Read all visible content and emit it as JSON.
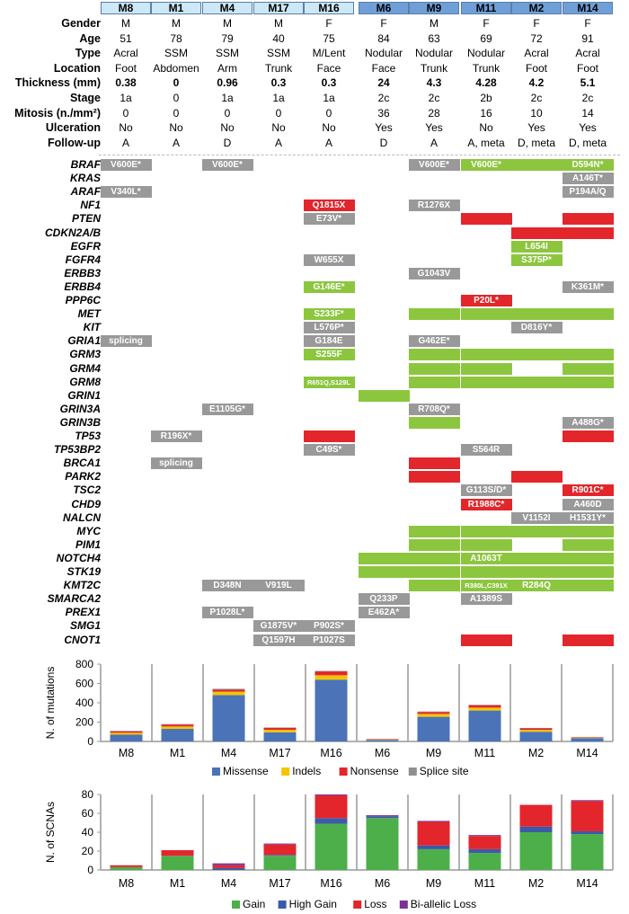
{
  "samples": [
    "M8",
    "M1",
    "M4",
    "M17",
    "M16",
    "M6",
    "M9",
    "M11",
    "M2",
    "M14"
  ],
  "header_styles": [
    "light",
    "light",
    "light",
    "light",
    "light",
    "dark",
    "dark",
    "dark",
    "dark",
    "dark"
  ],
  "clinical": [
    {
      "label": "Gender",
      "bold": false,
      "values": [
        "M",
        "M",
        "M",
        "M",
        "F",
        "F",
        "M",
        "F",
        "F",
        "F"
      ]
    },
    {
      "label": "Age",
      "bold": false,
      "values": [
        "51",
        "78",
        "79",
        "40",
        "75",
        "84",
        "63",
        "69",
        "72",
        "91"
      ]
    },
    {
      "label": "Type",
      "bold": false,
      "values": [
        "Acral",
        "SSM",
        "SSM",
        "SSM",
        "M/Lent",
        "Nodular",
        "Nodular",
        "Nodular",
        "Acral",
        "Acral"
      ]
    },
    {
      "label": "Location",
      "bold": false,
      "values": [
        "Foot",
        "Abdomen",
        "Arm",
        "Trunk",
        "Face",
        "Face",
        "Trunk",
        "Trunk",
        "Foot",
        "Foot"
      ]
    },
    {
      "label": "Thickness (mm)",
      "bold": true,
      "values": [
        "0.38",
        "0",
        "0.96",
        "0.3",
        "0.3",
        "24",
        "4.3",
        "4.28",
        "4.2",
        "5.1"
      ]
    },
    {
      "label": "Stage",
      "bold": false,
      "values": [
        "1a",
        "0",
        "1a",
        "1a",
        "1a",
        "2c",
        "2c",
        "2b",
        "2c",
        "2c"
      ]
    },
    {
      "label": "Mitosis (n./mm²)",
      "bold": false,
      "values": [
        "0",
        "0",
        "0",
        "0",
        "0",
        "36",
        "28",
        "16",
        "10",
        "14"
      ]
    },
    {
      "label": "Ulceration",
      "bold": false,
      "values": [
        "No",
        "No",
        "No",
        "No",
        "No",
        "Yes",
        "Yes",
        "No",
        "Yes",
        "Yes"
      ]
    },
    {
      "label": "Follow-up",
      "bold": false,
      "values": [
        "A",
        "A",
        "D",
        "A",
        "A",
        "D",
        "A",
        "A, meta",
        "D, meta",
        "D, meta"
      ]
    }
  ],
  "genes": [
    {
      "name": "BRAF",
      "cells": [
        [
          "g",
          "V600E*"
        ],
        null,
        [
          "g",
          "V600E*"
        ],
        null,
        null,
        null,
        [
          "g",
          "V600E*"
        ],
        [
          "G",
          "V600E*"
        ],
        [
          "G",
          ""
        ],
        [
          "G",
          "D594N*"
        ]
      ]
    },
    {
      "name": "KRAS",
      "cells": [
        null,
        null,
        null,
        null,
        null,
        null,
        null,
        null,
        null,
        [
          "g",
          "A146T*"
        ]
      ]
    },
    {
      "name": "ARAF",
      "cells": [
        [
          "g",
          "V340L*"
        ],
        null,
        null,
        null,
        null,
        null,
        null,
        null,
        null,
        [
          "g",
          "P194A/Q"
        ]
      ]
    },
    {
      "name": "NF1",
      "cells": [
        null,
        null,
        null,
        null,
        [
          "r",
          "Q1815X"
        ],
        null,
        [
          "g",
          "R1276X"
        ],
        null,
        null,
        null
      ]
    },
    {
      "name": "PTEN",
      "cells": [
        null,
        null,
        null,
        null,
        [
          "g",
          "E73V*"
        ],
        null,
        null,
        [
          "r",
          ""
        ],
        null,
        [
          "r",
          ""
        ]
      ]
    },
    {
      "name": "CDKN2A/B",
      "cells": [
        null,
        null,
        null,
        null,
        null,
        null,
        null,
        null,
        [
          "r",
          ""
        ],
        [
          "r",
          ""
        ]
      ]
    },
    {
      "name": "EGFR",
      "cells": [
        null,
        null,
        null,
        null,
        null,
        null,
        null,
        null,
        [
          "G",
          "L654I"
        ],
        null
      ]
    },
    {
      "name": "FGFR4",
      "cells": [
        null,
        null,
        null,
        null,
        [
          "g",
          "W655X"
        ],
        null,
        null,
        null,
        [
          "G",
          "S375P*"
        ],
        null
      ]
    },
    {
      "name": "ERBB3",
      "cells": [
        null,
        null,
        null,
        null,
        null,
        null,
        [
          "g",
          "G1043V"
        ],
        null,
        null,
        null
      ]
    },
    {
      "name": "ERBB4",
      "cells": [
        null,
        null,
        null,
        null,
        [
          "G",
          "G146E*"
        ],
        null,
        null,
        null,
        null,
        [
          "g",
          "K361M*"
        ]
      ]
    },
    {
      "name": "PPP6C",
      "cells": [
        null,
        null,
        null,
        null,
        null,
        null,
        null,
        [
          "r",
          "P20L*"
        ],
        null,
        null
      ]
    },
    {
      "name": "MET",
      "cells": [
        null,
        null,
        null,
        null,
        [
          "G",
          "S233F*"
        ],
        null,
        [
          "G",
          ""
        ],
        [
          "G",
          ""
        ],
        [
          "G",
          ""
        ],
        [
          "G",
          ""
        ]
      ]
    },
    {
      "name": "KIT",
      "cells": [
        null,
        null,
        null,
        null,
        [
          "g",
          "L576P*"
        ],
        null,
        null,
        null,
        [
          "g",
          "D816Y*"
        ],
        null
      ]
    },
    {
      "name": "GRIA1",
      "cells": [
        [
          "g",
          "splicing"
        ],
        null,
        null,
        null,
        [
          "g",
          "G184E"
        ],
        null,
        [
          "g",
          "G462E*"
        ],
        null,
        null,
        null
      ]
    },
    {
      "name": "GRM3",
      "cells": [
        null,
        null,
        null,
        null,
        [
          "G",
          "S255F"
        ],
        null,
        [
          "G",
          ""
        ],
        [
          "G",
          ""
        ],
        [
          "G",
          ""
        ],
        [
          "G",
          ""
        ]
      ]
    },
    {
      "name": "GRM4",
      "cells": [
        null,
        null,
        null,
        null,
        null,
        null,
        [
          "G",
          ""
        ],
        [
          "G",
          ""
        ],
        null,
        [
          "G",
          ""
        ]
      ]
    },
    {
      "name": "GRM8",
      "cells": [
        null,
        null,
        null,
        null,
        [
          "Gs",
          "R651Q,S129L"
        ],
        null,
        [
          "G",
          ""
        ],
        [
          "G",
          ""
        ],
        [
          "G",
          ""
        ],
        [
          "G",
          ""
        ]
      ]
    },
    {
      "name": "GRIN1",
      "cells": [
        null,
        null,
        null,
        null,
        null,
        [
          "G",
          ""
        ],
        null,
        null,
        null,
        null
      ]
    },
    {
      "name": "GRIN3A",
      "cells": [
        null,
        null,
        [
          "g",
          "E1105G*"
        ],
        null,
        null,
        null,
        [
          "g",
          "R708Q*"
        ],
        null,
        null,
        null
      ]
    },
    {
      "name": "GRIN3B",
      "cells": [
        null,
        null,
        null,
        null,
        null,
        null,
        [
          "G",
          ""
        ],
        null,
        null,
        [
          "g",
          "A488G*"
        ]
      ]
    },
    {
      "name": "TP53",
      "cells": [
        null,
        [
          "g",
          "R196X*"
        ],
        null,
        null,
        [
          "r",
          ""
        ],
        null,
        null,
        null,
        null,
        [
          "r",
          ""
        ]
      ]
    },
    {
      "name": "TP53BP2",
      "cells": [
        null,
        null,
        null,
        null,
        [
          "g",
          "C49S*"
        ],
        null,
        null,
        [
          "g",
          "S564R"
        ],
        null,
        null
      ]
    },
    {
      "name": "BRCA1",
      "cells": [
        null,
        [
          "g",
          "splicing"
        ],
        null,
        null,
        null,
        null,
        [
          "r",
          ""
        ],
        null,
        null,
        null
      ]
    },
    {
      "name": "PARK2",
      "cells": [
        null,
        null,
        null,
        null,
        null,
        null,
        [
          "r",
          ""
        ],
        null,
        [
          "r",
          ""
        ],
        null
      ]
    },
    {
      "name": "TSC2",
      "cells": [
        null,
        null,
        null,
        null,
        null,
        null,
        null,
        [
          "g",
          "G113S/D*"
        ],
        null,
        [
          "r",
          "R901C*"
        ]
      ]
    },
    {
      "name": "CHD9",
      "cells": [
        null,
        null,
        null,
        null,
        null,
        null,
        null,
        [
          "r",
          "R1988C*"
        ],
        null,
        [
          "g",
          "A460D"
        ]
      ]
    },
    {
      "name": "NALCN",
      "cells": [
        null,
        null,
        null,
        null,
        null,
        null,
        null,
        null,
        [
          "g",
          "V1152I"
        ],
        [
          "g",
          "H1531Y*"
        ]
      ]
    },
    {
      "name": "MYC",
      "cells": [
        null,
        null,
        null,
        null,
        null,
        null,
        [
          "G",
          ""
        ],
        [
          "G",
          ""
        ],
        [
          "G",
          ""
        ],
        [
          "G",
          ""
        ]
      ]
    },
    {
      "name": "PIM1",
      "cells": [
        null,
        null,
        null,
        null,
        null,
        null,
        [
          "G",
          ""
        ],
        [
          "G",
          ""
        ],
        null,
        [
          "G",
          ""
        ]
      ]
    },
    {
      "name": "NOTCH4",
      "cells": [
        null,
        null,
        null,
        null,
        null,
        [
          "G",
          ""
        ],
        [
          "G",
          ""
        ],
        [
          "G",
          "A1063T"
        ],
        [
          "G",
          ""
        ],
        [
          "G",
          ""
        ]
      ]
    },
    {
      "name": "STK19",
      "cells": [
        null,
        null,
        null,
        null,
        null,
        [
          "G",
          ""
        ],
        [
          "G",
          ""
        ],
        [
          "G",
          ""
        ],
        [
          "G",
          ""
        ],
        [
          "G",
          ""
        ]
      ]
    },
    {
      "name": "KMT2C",
      "cells": [
        null,
        null,
        [
          "g",
          "D348N"
        ],
        [
          "g",
          "V919L"
        ],
        null,
        null,
        [
          "G",
          ""
        ],
        [
          "Gs",
          "R380L,C391X"
        ],
        [
          "G",
          "R284Q"
        ],
        [
          "G",
          ""
        ]
      ]
    },
    {
      "name": "SMARCA2",
      "cells": [
        null,
        null,
        null,
        null,
        null,
        [
          "g",
          "Q233P"
        ],
        null,
        [
          "g",
          "A1389S"
        ],
        null,
        null
      ]
    },
    {
      "name": "PREX1",
      "cells": [
        null,
        null,
        [
          "g",
          "P1028L*"
        ],
        null,
        null,
        [
          "g",
          "E462A*"
        ],
        null,
        null,
        null,
        null
      ]
    },
    {
      "name": "SMG1",
      "cells": [
        null,
        null,
        null,
        [
          "g",
          "G1875V*"
        ],
        [
          "g",
          "P902S*"
        ],
        null,
        null,
        null,
        null,
        null
      ]
    },
    {
      "name": "CNOT1",
      "cells": [
        null,
        null,
        null,
        [
          "g",
          "Q1597H"
        ],
        [
          "g",
          "P1027S"
        ],
        null,
        null,
        [
          "r",
          ""
        ],
        null,
        [
          "r",
          ""
        ]
      ]
    }
  ],
  "chart_data": [
    {
      "type": "bar",
      "stacked": true,
      "categories": [
        "M8",
        "M1",
        "M4",
        "M17",
        "M16",
        "M6",
        "M9",
        "M11",
        "M2",
        "M14"
      ],
      "ylabel": "N. of mutations",
      "ylim": [
        0,
        800
      ],
      "yticks": [
        0,
        200,
        400,
        600,
        800
      ],
      "legend_position": "bottom",
      "series": [
        {
          "name": "Missense",
          "color": "#4a73b8",
          "values": [
            70,
            130,
            480,
            95,
            640,
            15,
            255,
            320,
            100,
            35
          ]
        },
        {
          "name": "Indels",
          "color": "#f5c400",
          "values": [
            20,
            25,
            35,
            25,
            45,
            5,
            30,
            30,
            20,
            5
          ]
        },
        {
          "name": "Nonsense",
          "color": "#e2262b",
          "values": [
            15,
            20,
            20,
            20,
            40,
            5,
            20,
            25,
            15,
            5
          ]
        },
        {
          "name": "Splice site",
          "color": "#8f8f8f",
          "values": [
            5,
            5,
            10,
            5,
            5,
            2,
            5,
            5,
            5,
            2
          ]
        }
      ]
    },
    {
      "type": "bar",
      "stacked": true,
      "categories": [
        "M8",
        "M1",
        "M4",
        "M17",
        "M16",
        "M6",
        "M9",
        "M11",
        "M2",
        "M14"
      ],
      "ylabel": "N. of SCNAs",
      "ylim": [
        0,
        80
      ],
      "yticks": [
        0,
        20,
        40,
        60,
        80
      ],
      "legend_position": "bottom",
      "series": [
        {
          "name": "Gain",
          "color": "#4daf4a",
          "values": [
            3,
            15,
            0,
            15,
            49,
            55,
            22,
            18,
            40,
            38
          ]
        },
        {
          "name": "High Gain",
          "color": "#3c5aa8",
          "values": [
            0,
            0,
            2,
            1,
            6,
            2,
            4,
            4,
            6,
            3
          ]
        },
        {
          "name": "Loss",
          "color": "#e2262b",
          "values": [
            2,
            6,
            3,
            11,
            24,
            0,
            25,
            14,
            23,
            32
          ]
        },
        {
          "name": "Bi-allelic Loss",
          "color": "#7b3294",
          "values": [
            0,
            0,
            2,
            1,
            1,
            1,
            1,
            1,
            0,
            1
          ]
        }
      ]
    }
  ]
}
